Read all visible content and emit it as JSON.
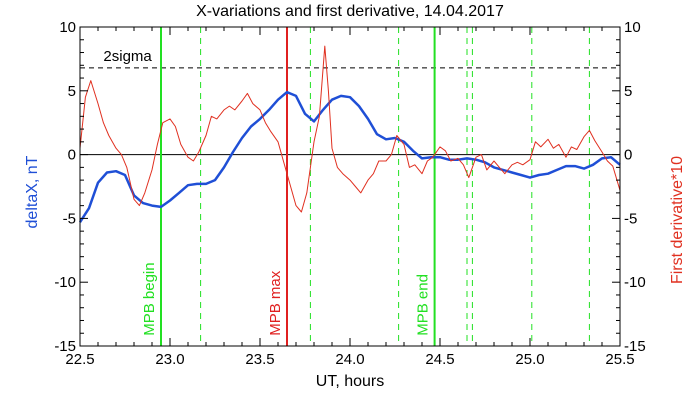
{
  "chart_data": {
    "type": "line",
    "title": "X-variations and first derivative, 14.04.2017",
    "xlabel": "UT, hours",
    "ylabel_left": "deltaX, nT",
    "ylabel_right": "First derivative*10",
    "xlim": [
      22.5,
      25.5
    ],
    "ylim": [
      -15,
      10
    ],
    "x_ticks": [
      "22.5",
      "23.0",
      "23.5",
      "24.0",
      "24.5",
      "25.0",
      "25.5"
    ],
    "y_ticks_left": [
      "-15",
      "-10",
      "-5",
      "0",
      "5",
      "10"
    ],
    "y_ticks_right": [
      "-15",
      "-10",
      "-5",
      "0",
      "5",
      "10"
    ],
    "colors": {
      "deltaX": "#1f4fd6",
      "derivative": "#e03020",
      "mpb": "#22e022",
      "max": "#e02020",
      "axes": "#000000"
    },
    "threshold": {
      "label": "2sigma",
      "value": 6.8,
      "style": "dashed"
    },
    "zero_line": 0,
    "vertical_markers": [
      {
        "x": 22.95,
        "label": "MPB begin",
        "style": "solid",
        "color": "#22e022"
      },
      {
        "x": 23.65,
        "label": "MPB max",
        "style": "solid",
        "color": "#e02020"
      },
      {
        "x": 24.47,
        "label": "MPB end",
        "style": "solid",
        "color": "#22e022"
      }
    ],
    "dashed_markers": [
      23.17,
      23.78,
      24.27,
      24.65,
      24.68,
      25.01,
      25.33
    ],
    "series": [
      {
        "name": "deltaX",
        "axis": "left",
        "x": [
          22.5,
          22.55,
          22.6,
          22.65,
          22.7,
          22.75,
          22.8,
          22.85,
          22.9,
          22.95,
          23.0,
          23.05,
          23.1,
          23.15,
          23.2,
          23.25,
          23.3,
          23.35,
          23.4,
          23.45,
          23.5,
          23.55,
          23.6,
          23.65,
          23.7,
          23.75,
          23.8,
          23.85,
          23.9,
          23.95,
          24.0,
          24.05,
          24.1,
          24.15,
          24.2,
          24.25,
          24.3,
          24.35,
          24.4,
          24.45,
          24.5,
          24.55,
          24.6,
          24.65,
          24.7,
          24.75,
          24.8,
          24.85,
          24.9,
          24.95,
          25.0,
          25.05,
          25.1,
          25.15,
          25.2,
          25.25,
          25.3,
          25.35,
          25.4,
          25.45,
          25.5
        ],
        "values": [
          -5.3,
          -4.2,
          -2.2,
          -1.4,
          -1.3,
          -1.6,
          -3.2,
          -3.8,
          -4.0,
          -4.1,
          -3.6,
          -3.0,
          -2.4,
          -2.3,
          -2.3,
          -2.0,
          -1.0,
          0.2,
          1.3,
          2.2,
          2.8,
          3.5,
          4.3,
          4.9,
          4.6,
          3.2,
          2.6,
          3.5,
          4.3,
          4.6,
          4.5,
          3.8,
          2.8,
          1.6,
          1.2,
          1.3,
          1.0,
          0.3,
          -0.3,
          -0.2,
          -0.2,
          -0.4,
          -0.4,
          -0.3,
          -0.4,
          -0.6,
          -1.0,
          -1.2,
          -1.4,
          -1.6,
          -1.8,
          -1.6,
          -1.5,
          -1.2,
          -0.9,
          -0.9,
          -1.1,
          -0.8,
          -0.3,
          -0.2,
          -0.8
        ]
      },
      {
        "name": "First derivative*10",
        "axis": "right",
        "x": [
          22.5,
          22.53,
          22.56,
          22.6,
          22.63,
          22.66,
          22.7,
          22.73,
          22.76,
          22.8,
          22.83,
          22.86,
          22.9,
          22.93,
          22.96,
          23.0,
          23.03,
          23.06,
          23.1,
          23.13,
          23.16,
          23.2,
          23.23,
          23.26,
          23.3,
          23.33,
          23.36,
          23.4,
          23.43,
          23.46,
          23.5,
          23.53,
          23.56,
          23.6,
          23.63,
          23.66,
          23.7,
          23.73,
          23.76,
          23.8,
          23.83,
          23.86,
          23.88,
          23.9,
          23.93,
          23.96,
          24.0,
          24.03,
          24.06,
          24.1,
          24.13,
          24.16,
          24.2,
          24.23,
          24.26,
          24.3,
          24.33,
          24.36,
          24.4,
          24.43,
          24.46,
          24.5,
          24.53,
          24.56,
          24.6,
          24.63,
          24.66,
          24.7,
          24.73,
          24.76,
          24.8,
          24.83,
          24.86,
          24.9,
          24.93,
          24.96,
          25.0,
          25.03,
          25.06,
          25.1,
          25.13,
          25.16,
          25.2,
          25.23,
          25.26,
          25.3,
          25.33,
          25.36,
          25.4,
          25.43,
          25.46,
          25.5
        ],
        "values": [
          0.5,
          4.5,
          5.8,
          4.0,
          2.5,
          1.5,
          0.5,
          0.0,
          -1.0,
          -3.5,
          -4.0,
          -3.0,
          -1.2,
          0.8,
          2.5,
          2.8,
          2.2,
          0.8,
          -0.2,
          -0.5,
          0.2,
          1.5,
          3.0,
          2.8,
          3.5,
          3.8,
          3.5,
          4.2,
          4.8,
          4.0,
          3.5,
          2.5,
          1.8,
          1.0,
          -0.5,
          -2.0,
          -4.0,
          -4.5,
          -3.0,
          1.0,
          3.0,
          8.5,
          5.0,
          0.5,
          -1.0,
          -1.5,
          -2.0,
          -2.5,
          -3.0,
          -2.0,
          -1.5,
          -0.5,
          -0.5,
          0.0,
          1.5,
          0.8,
          -1.0,
          -0.8,
          -1.5,
          -0.5,
          -0.2,
          0.6,
          0.3,
          -0.5,
          -0.3,
          -0.8,
          -1.8,
          -0.2,
          0.0,
          -1.2,
          -0.5,
          -1.0,
          -1.5,
          -0.8,
          -0.6,
          -0.8,
          -0.4,
          1.0,
          0.6,
          1.2,
          0.5,
          0.8,
          -0.2,
          0.6,
          0.4,
          1.4,
          1.9,
          1.1,
          0.2,
          -0.5,
          -0.9,
          -2.8
        ]
      }
    ]
  }
}
